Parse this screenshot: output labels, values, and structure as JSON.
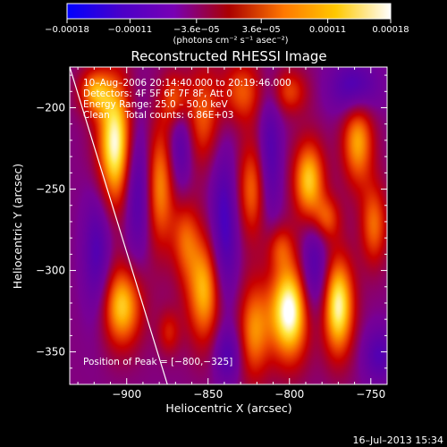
{
  "chart_data": {
    "type": "heatmap",
    "title": "Reconstructed RHESSI Image",
    "xlabel": "Heliocentric X (arcsec)",
    "ylabel": "Heliocentric Y (arcsec)",
    "xlim": [
      -935,
      -740
    ],
    "ylim": [
      -370,
      -175
    ],
    "x_ticks": [
      -900,
      -850,
      -800,
      -750
    ],
    "x_tick_labels": [
      "−900",
      "−850",
      "−800",
      "−750"
    ],
    "y_ticks": [
      -200,
      -250,
      -300,
      -350
    ],
    "y_tick_labels": [
      "−200",
      "−250",
      "−300",
      "−350"
    ],
    "colorbar": {
      "range": [
        -0.00018,
        0.00018
      ],
      "ticks": [
        -0.00018,
        -0.00011,
        -3.6e-05,
        3.6e-05,
        0.00011,
        0.00018
      ],
      "tick_labels": [
        "−0.00018",
        "−0.00011",
        "−3.6e−05",
        "3.6e−05",
        "0.00011",
        "0.00018"
      ],
      "unit_label": "(photons cm⁻² s⁻¹ asec⁻²)",
      "colors": [
        "#0000ff",
        "#4b00c8",
        "#7800b4",
        "#aa0000",
        "#ff7800",
        "#ffc800",
        "#ffffff"
      ]
    },
    "annotations": [
      "10–Aug–2006 20:14:40.000 to 20:19:46.000",
      "Detectors: 4F 5F 6F 7F 8F, Att 0",
      "Energy Range: 25.0 – 50.0 keV",
      "Clean     Total counts: 6.86E+03"
    ],
    "peak_label": "Position of Peak = [−800,−325]",
    "peak": [
      -800,
      -325
    ],
    "limb_line": [
      [
        -935,
        -175
      ],
      [
        -875,
        -370
      ]
    ],
    "blobs": [
      {
        "x": -907,
        "y": -222,
        "v": 1.0,
        "sx": 8,
        "sy": 28
      },
      {
        "x": -920,
        "y": -190,
        "v": 0.6,
        "sx": 7,
        "sy": 10
      },
      {
        "x": -903,
        "y": -322,
        "v": 0.8,
        "sx": 9,
        "sy": 18
      },
      {
        "x": -880,
        "y": -248,
        "v": 0.65,
        "sx": 7,
        "sy": 28
      },
      {
        "x": -870,
        "y": -195,
        "v": 0.55,
        "sx": 6,
        "sy": 12
      },
      {
        "x": -864,
        "y": -280,
        "v": 0.45,
        "sx": 6,
        "sy": 18
      },
      {
        "x": -874,
        "y": -338,
        "v": 0.35,
        "sx": 5,
        "sy": 10
      },
      {
        "x": -853,
        "y": -205,
        "v": 0.5,
        "sx": 8,
        "sy": 22
      },
      {
        "x": -852,
        "y": -312,
        "v": 0.75,
        "sx": 8,
        "sy": 24
      },
      {
        "x": -829,
        "y": -190,
        "v": 0.5,
        "sx": 9,
        "sy": 14
      },
      {
        "x": -823,
        "y": -250,
        "v": 0.55,
        "sx": 7,
        "sy": 22
      },
      {
        "x": -822,
        "y": -337,
        "v": 0.6,
        "sx": 7,
        "sy": 22
      },
      {
        "x": -800,
        "y": -325,
        "v": 1.05,
        "sx": 9,
        "sy": 22
      },
      {
        "x": -806,
        "y": -285,
        "v": 0.35,
        "sx": 6,
        "sy": 10
      },
      {
        "x": -788,
        "y": -245,
        "v": 0.8,
        "sx": 7,
        "sy": 18
      },
      {
        "x": -800,
        "y": -190,
        "v": 0.45,
        "sx": 8,
        "sy": 10
      },
      {
        "x": -777,
        "y": -268,
        "v": 0.45,
        "sx": 6,
        "sy": 10
      },
      {
        "x": -770,
        "y": -322,
        "v": 0.95,
        "sx": 7,
        "sy": 22
      },
      {
        "x": -758,
        "y": -220,
        "v": 0.7,
        "sx": 7,
        "sy": 20
      },
      {
        "x": -748,
        "y": -272,
        "v": 0.55,
        "sx": 6,
        "sy": 18
      },
      {
        "x": -760,
        "y": -188,
        "v": -0.55,
        "sx": 10,
        "sy": 12
      },
      {
        "x": -893,
        "y": -248,
        "v": -0.55,
        "sx": 6,
        "sy": 30
      },
      {
        "x": -867,
        "y": -222,
        "v": -0.45,
        "sx": 5,
        "sy": 22
      },
      {
        "x": -840,
        "y": -275,
        "v": -0.55,
        "sx": 6,
        "sy": 35
      },
      {
        "x": -812,
        "y": -230,
        "v": -0.45,
        "sx": 5,
        "sy": 30
      },
      {
        "x": -785,
        "y": -300,
        "v": -0.5,
        "sx": 6,
        "sy": 22
      },
      {
        "x": -918,
        "y": -290,
        "v": -0.45,
        "sx": 6,
        "sy": 28
      },
      {
        "x": -838,
        "y": -352,
        "v": -0.4,
        "sx": 6,
        "sy": 12
      },
      {
        "x": -745,
        "y": -352,
        "v": -0.4,
        "sx": 7,
        "sy": 12
      }
    ]
  },
  "footer": {
    "timestamp": "16–Jul–2013 15:34"
  }
}
